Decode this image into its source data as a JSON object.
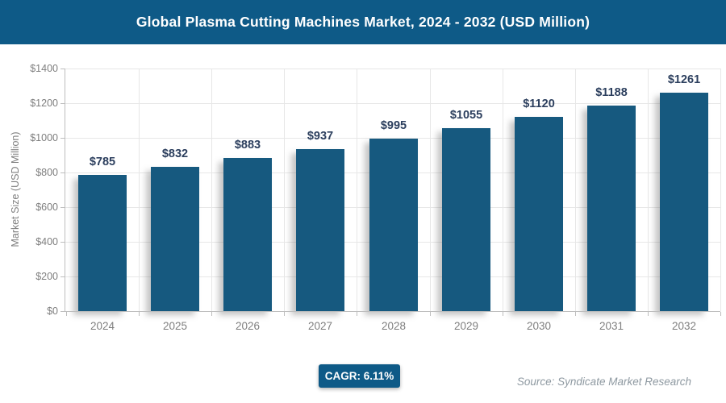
{
  "header": {
    "title": "Global Plasma Cutting Machines Market, 2024 - 2032 (USD Million)"
  },
  "chart_data": {
    "type": "bar",
    "title": "Global Plasma Cutting Machines Market, 2024 - 2032 (USD Million)",
    "categories": [
      "2024",
      "2025",
      "2026",
      "2027",
      "2028",
      "2029",
      "2030",
      "2031",
      "2032"
    ],
    "values": [
      785,
      832,
      883,
      937,
      995,
      1055,
      1120,
      1188,
      1261
    ],
    "value_labels": [
      "$785",
      "$832",
      "$883",
      "$937",
      "$995",
      "$1055",
      "$1120",
      "$1188",
      "$1261"
    ],
    "xlabel": "",
    "ylabel": "Market Size (USD Million)",
    "ylim": [
      0,
      1400
    ],
    "yticks": [
      {
        "value": 0,
        "label": "$0"
      },
      {
        "value": 200,
        "label": "$200"
      },
      {
        "value": 400,
        "label": "$400"
      },
      {
        "value": 600,
        "label": "$600"
      },
      {
        "value": 800,
        "label": "$800"
      },
      {
        "value": 1000,
        "label": "$1000"
      },
      {
        "value": 1200,
        "label": "$1200"
      },
      {
        "value": 1400,
        "label": "$1400"
      }
    ],
    "grid": "both",
    "legend": "none"
  },
  "footer": {
    "cagr_label": "CAGR: 6.11%",
    "source": "Source: Syndicate Market Research"
  },
  "colors": {
    "header_bg": "#0E5A87",
    "bar": "#16597F",
    "grid": "#E7E7E7",
    "axis": "#BDBDBD",
    "tick_text": "#7E7E7E",
    "value_label": "#2C3F5E",
    "badge_bg": "#0E5A87",
    "source_text": "#8E99A1"
  }
}
